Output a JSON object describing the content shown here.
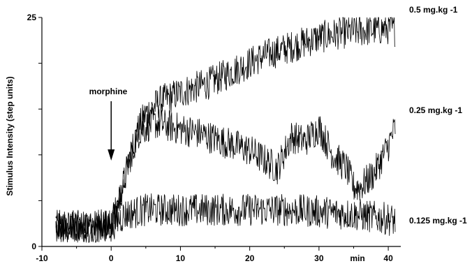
{
  "chart_data": {
    "type": "line",
    "title": "",
    "xlabel": "min",
    "ylabel": "Stimulus Intensity (step units)",
    "xlim": [
      -10,
      41
    ],
    "ylim": [
      0,
      25
    ],
    "x_ticks": [
      "-10",
      "0",
      "10",
      "20",
      "30",
      "40"
    ],
    "y_ticks": [
      "0",
      "25"
    ],
    "grid": false,
    "legend": "right-of-lines",
    "annotation": {
      "text": "morphine",
      "x": 0,
      "y": 10
    },
    "series": [
      {
        "name": "0.5 mg.kg -1",
        "color": "#000000",
        "x": [
          -8,
          -4,
          0,
          1,
          2,
          3,
          4,
          5,
          7,
          10,
          14,
          18,
          22,
          26,
          30,
          33,
          37,
          40,
          41
        ],
        "y": [
          2.2,
          2.2,
          2.3,
          4.5,
          7.5,
          10.5,
          13,
          14.5,
          15.8,
          16.8,
          17.8,
          19.3,
          20.8,
          21.8,
          22.8,
          23.3,
          23.6,
          23.8,
          23.6
        ]
      },
      {
        "name": "0.25 mg.kg -1",
        "color": "#000000",
        "x": [
          -8,
          -4,
          0,
          1,
          2,
          3,
          4,
          5,
          6,
          8,
          10,
          12,
          14,
          16,
          18,
          20,
          22,
          24,
          26,
          28,
          30,
          32,
          34,
          35,
          36,
          38,
          40,
          41
        ],
        "y": [
          2.2,
          2.2,
          2.3,
          4.5,
          7.5,
          10.5,
          12.5,
          13,
          13.5,
          13.2,
          12.8,
          12.5,
          12,
          11.5,
          11,
          10.5,
          9.5,
          8.5,
          12,
          11.5,
          13,
          10,
          8.5,
          6.5,
          6.5,
          8,
          11,
          13
        ]
      },
      {
        "name": "0.125 mg.kg -1",
        "color": "#000000",
        "x": [
          -8,
          -4,
          0,
          2,
          5,
          10,
          15,
          20,
          25,
          30,
          35,
          40,
          41
        ],
        "y": [
          2.2,
          2.2,
          2.3,
          3.5,
          4,
          4,
          4,
          4,
          4,
          3.8,
          3.5,
          3.0,
          2.8
        ]
      }
    ]
  }
}
